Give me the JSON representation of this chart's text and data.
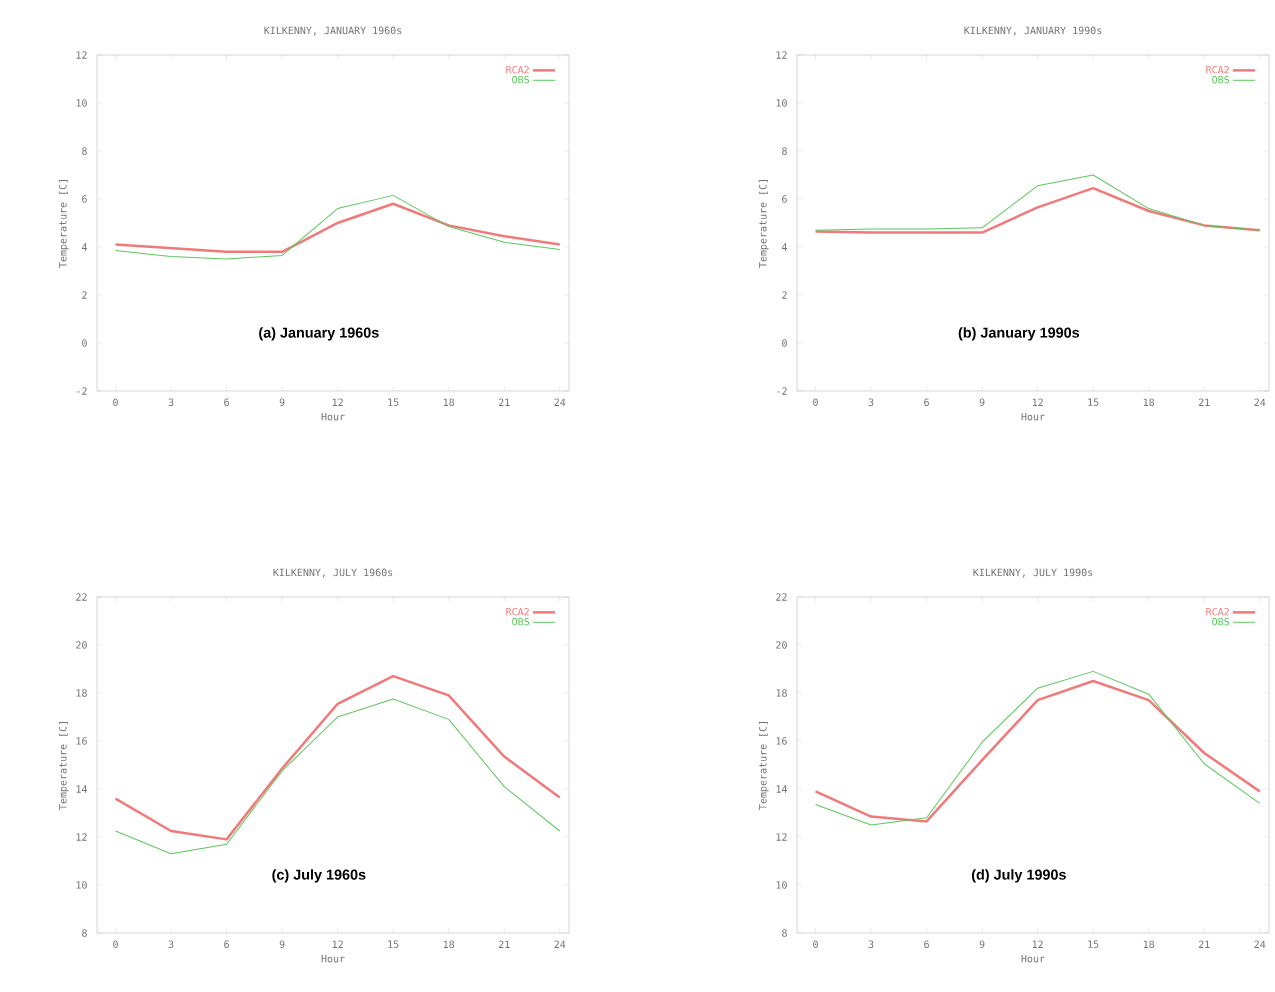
{
  "chart_data": [
    {
      "type": "line",
      "title": "KILKENNY, JANUARY 1960s",
      "xlabel": "Hour",
      "ylabel": "Temperature [C]",
      "annotations": [
        "(a) January 1960s"
      ],
      "x": [
        0,
        3,
        6,
        9,
        12,
        15,
        18,
        21,
        24
      ],
      "xlim": [
        -1,
        24.5
      ],
      "ylim": [
        -2,
        12
      ],
      "xticks": [
        0,
        3,
        6,
        9,
        12,
        15,
        18,
        21,
        24
      ],
      "yticks": [
        -2,
        0,
        2,
        4,
        6,
        8,
        10,
        12
      ],
      "legend": "top right",
      "series": [
        {
          "name": "RCA2",
          "color": "#f07a7a",
          "values": [
            4.1,
            3.95,
            3.8,
            3.8,
            5.0,
            5.8,
            4.9,
            4.45,
            4.1
          ]
        },
        {
          "name": "OBS",
          "color": "#5cc85c",
          "values": [
            3.85,
            3.6,
            3.5,
            3.65,
            5.6,
            6.15,
            4.85,
            4.2,
            3.9
          ]
        }
      ]
    },
    {
      "type": "line",
      "title": "KILKENNY, JANUARY 1990s",
      "xlabel": "Hour",
      "ylabel": "Temperature [C]",
      "annotations": [
        "(b) January 1990s"
      ],
      "x": [
        0,
        3,
        6,
        9,
        12,
        15,
        18,
        21,
        24
      ],
      "xlim": [
        -1,
        24.5
      ],
      "ylim": [
        -2,
        12
      ],
      "xticks": [
        0,
        3,
        6,
        9,
        12,
        15,
        18,
        21,
        24
      ],
      "yticks": [
        -2,
        0,
        2,
        4,
        6,
        8,
        10,
        12
      ],
      "legend": "top right",
      "series": [
        {
          "name": "RCA2",
          "color": "#f07a7a",
          "values": [
            4.65,
            4.6,
            4.6,
            4.6,
            5.65,
            6.45,
            5.5,
            4.9,
            4.7
          ]
        },
        {
          "name": "OBS",
          "color": "#5cc85c",
          "values": [
            4.7,
            4.75,
            4.75,
            4.8,
            6.55,
            7.0,
            5.6,
            4.9,
            4.7
          ]
        }
      ]
    },
    {
      "type": "line",
      "title": "KILKENNY, JULY 1960s",
      "xlabel": "Hour",
      "ylabel": "Temperature [C]",
      "annotations": [
        "(c) July 1960s"
      ],
      "x": [
        0,
        3,
        6,
        9,
        12,
        15,
        18,
        21,
        24
      ],
      "xlim": [
        -1,
        24.5
      ],
      "ylim": [
        8,
        22
      ],
      "xticks": [
        0,
        3,
        6,
        9,
        12,
        15,
        18,
        21,
        24
      ],
      "yticks": [
        8,
        10,
        12,
        14,
        16,
        18,
        20,
        22
      ],
      "legend": "top right",
      "series": [
        {
          "name": "RCA2",
          "color": "#f07a7a",
          "values": [
            13.6,
            12.25,
            11.9,
            14.85,
            17.55,
            18.7,
            17.9,
            15.35,
            13.65
          ]
        },
        {
          "name": "OBS",
          "color": "#5cc85c",
          "values": [
            12.25,
            11.3,
            11.7,
            14.75,
            17.0,
            17.75,
            16.9,
            14.1,
            12.25
          ]
        }
      ]
    },
    {
      "type": "line",
      "title": "KILKENNY, JULY 1990s",
      "xlabel": "Hour",
      "ylabel": "Temperature [C]",
      "annotations": [
        "(d) July 1990s"
      ],
      "x": [
        0,
        3,
        6,
        9,
        12,
        15,
        18,
        21,
        24
      ],
      "xlim": [
        -1,
        24.5
      ],
      "ylim": [
        8,
        22
      ],
      "xticks": [
        0,
        3,
        6,
        9,
        12,
        15,
        18,
        21,
        24
      ],
      "yticks": [
        8,
        10,
        12,
        14,
        16,
        18,
        20,
        22
      ],
      "legend": "top right",
      "series": [
        {
          "name": "RCA2",
          "color": "#f07a7a",
          "values": [
            13.9,
            12.85,
            12.65,
            15.2,
            17.7,
            18.5,
            17.7,
            15.5,
            13.9
          ]
        },
        {
          "name": "OBS",
          "color": "#5cc85c",
          "values": [
            13.35,
            12.5,
            12.8,
            15.95,
            18.2,
            18.9,
            17.95,
            15.05,
            13.4
          ]
        }
      ]
    }
  ]
}
